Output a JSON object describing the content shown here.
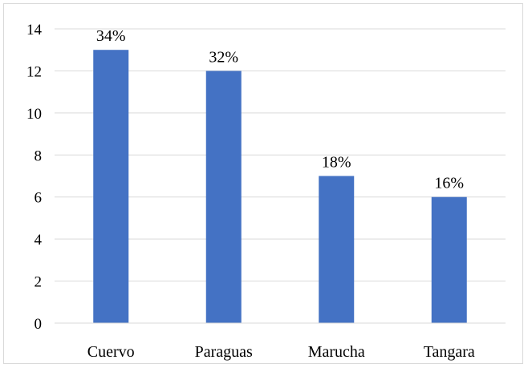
{
  "chart_data": {
    "type": "bar",
    "title": "",
    "xlabel": "",
    "ylabel": "",
    "categories": [
      "Cuervo",
      "Paraguas",
      "Marucha",
      "Tangara"
    ],
    "values": [
      13,
      12,
      7,
      6
    ],
    "data_labels": [
      "34%",
      "32%",
      "18%",
      "16%"
    ],
    "ylim": [
      0,
      14
    ],
    "y_ticks": [
      "0",
      "2",
      "4",
      "6",
      "8",
      "10",
      "12",
      "14"
    ],
    "grid": true,
    "legend": "none",
    "colors": {
      "bar": "#4472c4",
      "grid": "#d9d9d9",
      "axis": "#d9d9d9"
    }
  }
}
